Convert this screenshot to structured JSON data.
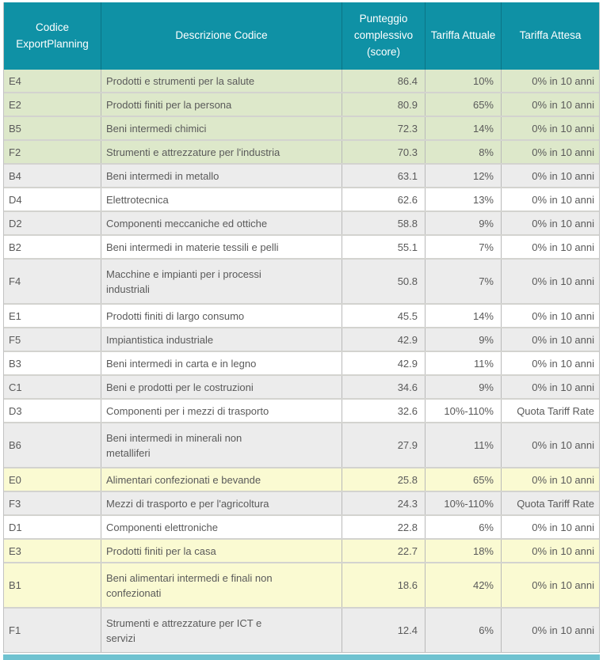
{
  "colors": {
    "header_bg": "#0f91a5",
    "header_text": "#ffffff",
    "header_separator": "#0b7486",
    "row_green": "#dde8ca",
    "row_yellow": "#fafad2",
    "row_gray": "#ececec",
    "row_white": "#ffffff",
    "body_text": "#5a5a5a",
    "cell_border": "#b9b9b9",
    "row_border": "#d3d3cf",
    "bottom_bar": "#6fc2d0"
  },
  "table": {
    "columns": [
      {
        "id": "codice",
        "label": "Codice ExportPlanning"
      },
      {
        "id": "descrizione",
        "label": "Descrizione Codice"
      },
      {
        "id": "punteggio",
        "label": "Punteggio complessivo (score)"
      },
      {
        "id": "tariffa_attuale",
        "label": "Tariffa Attuale"
      },
      {
        "id": "tariffa_attesa",
        "label": "Tariffa  Attesa"
      }
    ],
    "rows": [
      {
        "code": "E4",
        "desc": "Prodotti e strumenti per la salute",
        "score": "86.4",
        "tariffa_attuale": "10%",
        "tariffa_attesa": "0% in 10 anni",
        "highlight": "green"
      },
      {
        "code": "E2",
        "desc": "Prodotti finiti per la persona",
        "score": "80.9",
        "tariffa_attuale": "65%",
        "tariffa_attesa": "0% in 10 anni",
        "highlight": "green"
      },
      {
        "code": "B5",
        "desc": "Beni intermedi chimici",
        "score": "72.3",
        "tariffa_attuale": "14%",
        "tariffa_attesa": "0% in 10 anni",
        "highlight": "green"
      },
      {
        "code": "F2",
        "desc": "Strumenti e attrezzature per l'industria",
        "score": "70.3",
        "tariffa_attuale": "8%",
        "tariffa_attesa": "0% in 10 anni",
        "highlight": "green"
      },
      {
        "code": "B4",
        "desc": "Beni intermedi in metallo",
        "score": "63.1",
        "tariffa_attuale": "12%",
        "tariffa_attesa": "0% in 10 anni",
        "highlight": "gray"
      },
      {
        "code": "D4",
        "desc": "Elettrotecnica",
        "score": "62.6",
        "tariffa_attuale": "13%",
        "tariffa_attesa": "0% in 10 anni",
        "highlight": "white"
      },
      {
        "code": "D2",
        "desc": "Componenti meccaniche ed ottiche",
        "score": "58.8",
        "tariffa_attuale": "9%",
        "tariffa_attesa": "0% in 10 anni",
        "highlight": "gray"
      },
      {
        "code": "B2",
        "desc": "Beni intermedi in materie tessili e pelli",
        "score": "55.1",
        "tariffa_attuale": "7%",
        "tariffa_attesa": "0% in 10 anni",
        "highlight": "white"
      },
      {
        "code": "F4",
        "desc": "Macchine e impianti per i processi\nindustriali",
        "score": "50.8",
        "tariffa_attuale": "7%",
        "tariffa_attesa": "0% in 10 anni",
        "highlight": "gray"
      },
      {
        "code": "E1",
        "desc": "Prodotti finiti di largo consumo",
        "score": "45.5",
        "tariffa_attuale": "14%",
        "tariffa_attesa": "0% in 10 anni",
        "highlight": "white"
      },
      {
        "code": "F5",
        "desc": "Impiantistica industriale",
        "score": "42.9",
        "tariffa_attuale": "9%",
        "tariffa_attesa": "0% in 10 anni",
        "highlight": "gray"
      },
      {
        "code": "B3",
        "desc": "Beni intermedi in carta e in legno",
        "score": "42.9",
        "tariffa_attuale": "11%",
        "tariffa_attesa": "0% in 10 anni",
        "highlight": "white"
      },
      {
        "code": "C1",
        "desc": "Beni e prodotti per le costruzioni",
        "score": "34.6",
        "tariffa_attuale": "9%",
        "tariffa_attesa": "0% in 10 anni",
        "highlight": "gray"
      },
      {
        "code": "D3",
        "desc": "Componenti per i mezzi di trasporto",
        "score": "32.6",
        "tariffa_attuale": "10%-110%",
        "tariffa_attesa": "Quota Tariff Rate",
        "highlight": "white"
      },
      {
        "code": "B6",
        "desc": "Beni intermedi in minerali non\nmetalliferi",
        "score": "27.9",
        "tariffa_attuale": "11%",
        "tariffa_attesa": "0% in 10 anni",
        "highlight": "gray"
      },
      {
        "code": "E0",
        "desc": "Alimentari confezionati e bevande",
        "score": "25.8",
        "tariffa_attuale": "65%",
        "tariffa_attesa": "0% in 10 anni",
        "highlight": "yellow"
      },
      {
        "code": "F3",
        "desc": "Mezzi di trasporto e per l'agricoltura",
        "score": "24.3",
        "tariffa_attuale": "10%-110%",
        "tariffa_attesa": "Quota Tariff Rate",
        "highlight": "gray"
      },
      {
        "code": "D1",
        "desc": "Componenti elettroniche",
        "score": "22.8",
        "tariffa_attuale": "6%",
        "tariffa_attesa": "0% in 10 anni",
        "highlight": "white"
      },
      {
        "code": "E3",
        "desc": "Prodotti finiti per la casa",
        "score": "22.7",
        "tariffa_attuale": "18%",
        "tariffa_attesa": "0% in 10 anni",
        "highlight": "yellow"
      },
      {
        "code": "B1",
        "desc": "Beni alimentari intermedi e finali non\nconfezionati",
        "score": "18.6",
        "tariffa_attuale": "42%",
        "tariffa_attesa": "0% in 10 anni",
        "highlight": "yellow"
      },
      {
        "code": "F1",
        "desc": "Strumenti e attrezzature per ICT e\nservizi",
        "score": "12.4",
        "tariffa_attuale": "6%",
        "tariffa_attesa": "0% in 10 anni",
        "highlight": "gray"
      }
    ]
  }
}
